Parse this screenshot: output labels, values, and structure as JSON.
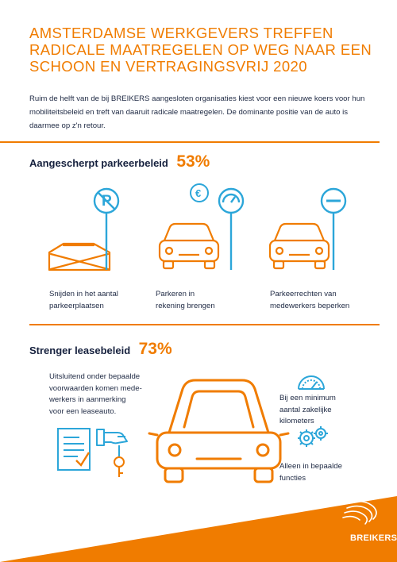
{
  "header": {
    "title": "AMSTERDAMSE WERKGEVERS TREFFEN\nRADICALE MAATREGELEN OP WEG NAAR EEN\nSCHOON EN VERTRAGINGSVRIJ 2020",
    "intro": "Ruim de helft van de bij BREIKERS aangesloten organisaties kiest voor een nieuwe koers voor hun mobiliteitsbeleid en treft van daaruit radicale maatregelen. De dominante positie van de auto is daarmee op z'n retour."
  },
  "section1": {
    "heading": "Aangescherpt parkeerbeleid",
    "percent": "53%",
    "items": [
      {
        "caption": "Snijden in het aantal\nparkeerplaatsen"
      },
      {
        "caption": "Parkeren in\nrekening brengen"
      },
      {
        "caption": "Parkeerrechten van\nmedewerkers beperken"
      }
    ],
    "icon_labels": {
      "parking_sign": "P",
      "euro": "€"
    }
  },
  "section2": {
    "heading": "Strenger leasebeleid",
    "percent": "73%",
    "left_text": "Uitsluitend onder bepaalde\nvoorwaarden komen mede-\nwerkers in aanmerking\nvoor een leaseauto.",
    "right_items": [
      {
        "caption": "Bij een minimum\naantal zakelijke\nkilometers"
      },
      {
        "caption": "Alleen in bepaalde\nfuncties"
      }
    ]
  },
  "footer": {
    "brand": "BREIKERS"
  },
  "colors": {
    "orange": "#f07c00",
    "blue": "#2ca6d9",
    "navy": "#1f2a44"
  }
}
